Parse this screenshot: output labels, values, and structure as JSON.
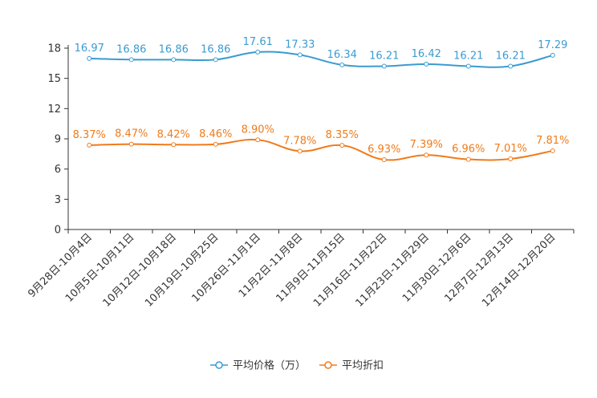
{
  "chart_data": {
    "type": "line",
    "title": "",
    "xlabel": "",
    "ylabel": "",
    "ylim": [
      0,
      18
    ],
    "yticks": [
      0,
      3,
      6,
      9,
      12,
      15,
      18
    ],
    "categories": [
      "9月28日-10月4日",
      "10月5日-10月11日",
      "10月12日-10月18日",
      "10月19日-10月25日",
      "10月26日-11月1日",
      "11月2日-11月8日",
      "11月9日-11月15日",
      "11月16日-11月22日",
      "11月23日-11月29日",
      "11月30日-12月6日",
      "12月7日-12月13日",
      "12月14日-12月20日"
    ],
    "series": [
      {
        "name": "平均价格（万）",
        "color": "#3a9bd1",
        "values": [
          16.97,
          16.86,
          16.86,
          16.86,
          17.61,
          17.33,
          16.34,
          16.21,
          16.42,
          16.21,
          16.21,
          17.29
        ],
        "labels": [
          "16.97",
          "16.86",
          "16.86",
          "16.86",
          "17.61",
          "17.33",
          "16.34",
          "16.21",
          "16.42",
          "16.21",
          "16.21",
          "17.29"
        ]
      },
      {
        "name": "平均折扣",
        "color": "#f07b1b",
        "values": [
          8.37,
          8.47,
          8.42,
          8.46,
          8.9,
          7.78,
          8.35,
          6.93,
          7.39,
          6.96,
          7.01,
          7.81
        ],
        "labels": [
          "8.37%",
          "8.47%",
          "8.42%",
          "8.46%",
          "8.90%",
          "7.78%",
          "8.35%",
          "6.93%",
          "7.39%",
          "6.96%",
          "7.01%",
          "7.81%"
        ]
      }
    ],
    "legend": "bottom-center",
    "grid": false
  }
}
